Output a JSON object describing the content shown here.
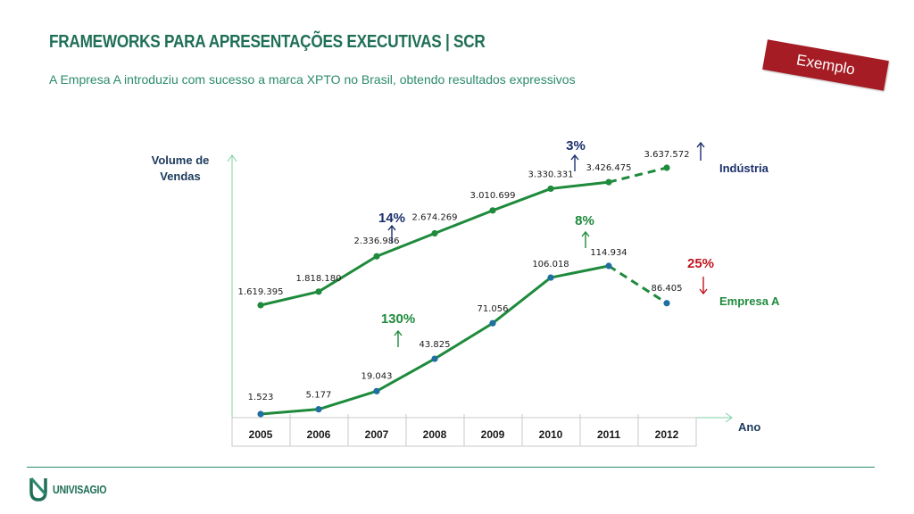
{
  "header": {
    "title": "FRAMEWORKS PARA APRESENTAÇÕES EXECUTIVAS | SCR",
    "subtitle": "A Empresa A  introduziu com sucesso a marca XPTO no Brasil, obtendo resultados expressivos",
    "badge": "Exemplo"
  },
  "footer": {
    "logo_text": "UNIVISAGIO"
  },
  "colors": {
    "brand": "#1f6f57",
    "line": "#1e8a3c",
    "point_blue": "#1f6fa0",
    "navy": "#1b2f6b",
    "red": "#c0151f",
    "badge": "#a51c24"
  },
  "chart_data": {
    "type": "line",
    "ylabel": "Volume de Vendas",
    "xlabel": "Ano",
    "categories": [
      "2005",
      "2006",
      "2007",
      "2008",
      "2009",
      "2010",
      "2011",
      "2012"
    ],
    "series": [
      {
        "name": "Indústria",
        "values": [
          1619395,
          1818180,
          2336986,
          2674269,
          3010699,
          3330331,
          3426475,
          3637572
        ],
        "labels": [
          "1.619.395",
          "1.818.180",
          "2.336.986",
          "2.674.269",
          "3.010.699",
          "3.330.331",
          "3.426.475",
          "3.637.572"
        ],
        "projected_from_index": 6,
        "point_color": "#1e8a3c",
        "label_color": "#1b2f6b"
      },
      {
        "name": "Empresa A",
        "values": [
          1523,
          5177,
          19043,
          43825,
          71056,
          106018,
          114934,
          86405
        ],
        "labels": [
          "1.523",
          "5.177",
          "19.043",
          "43.825",
          "71.056",
          "106.018",
          "114.934",
          "86.405"
        ],
        "projected_from_index": 6,
        "point_color": "#1f6fa0",
        "label_color": "#1e8a3c"
      }
    ],
    "annotations": [
      {
        "text": "3%",
        "arrow": "up",
        "color": "#1b2f6b"
      },
      {
        "text": "",
        "arrow": "up",
        "color": "#1b2f6b"
      },
      {
        "text": "14%",
        "arrow": "up",
        "color": "#1b2f6b"
      },
      {
        "text": "8%",
        "arrow": "up",
        "color": "#1e8a3c"
      },
      {
        "text": "130%",
        "arrow": "up",
        "color": "#1e8a3c"
      },
      {
        "text": "25%",
        "arrow": "down",
        "color": "#c0151f"
      }
    ]
  }
}
